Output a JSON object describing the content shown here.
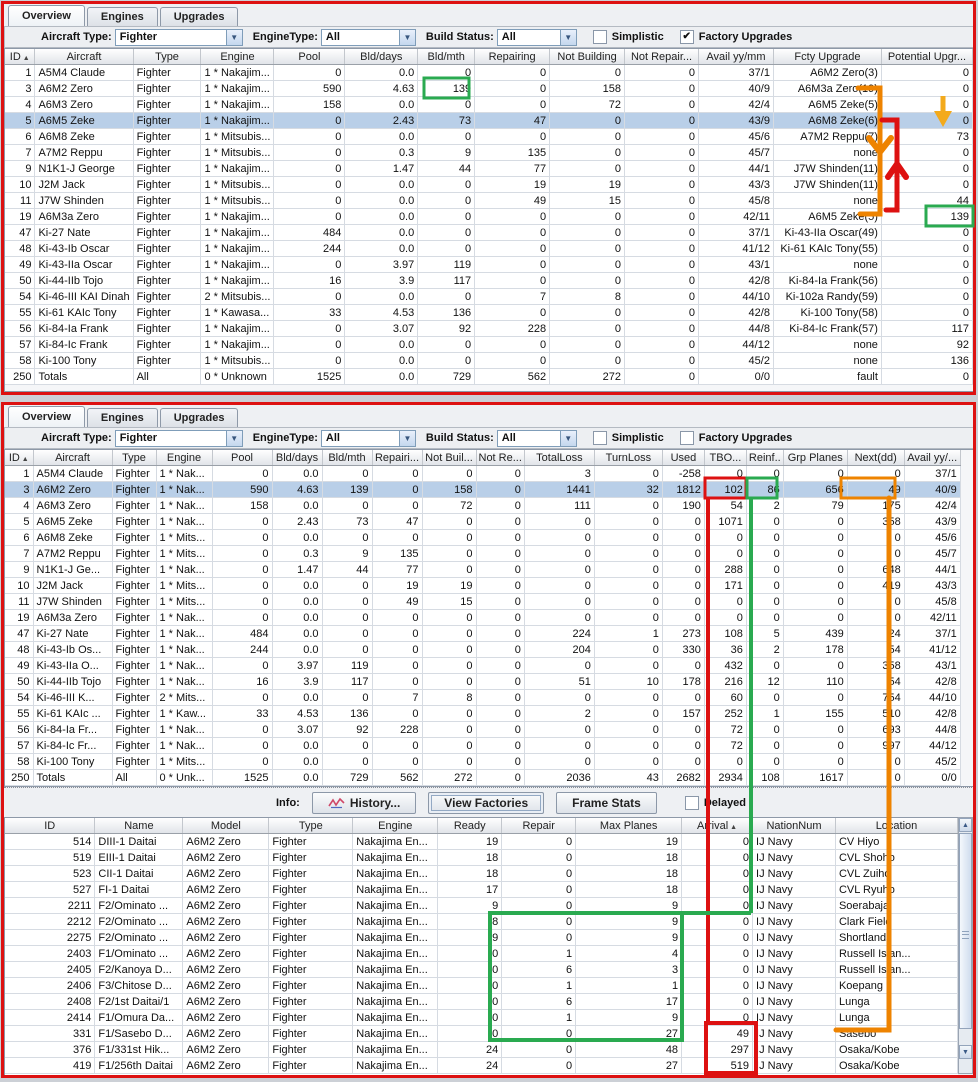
{
  "ui": {
    "sort_asc": "▲",
    "combo_arrow": "▼",
    "check_glyph": "✔",
    "scroll_up": "▲",
    "scroll_down": "▼"
  },
  "colors": {
    "annotation_red": "#dd1111",
    "annotation_green": "#2aaa50",
    "annotation_orange": "#ee8300",
    "annotation_amber": "#f3aa1c",
    "selection_blue": "#b9cfe8"
  },
  "panel_top": {
    "tabs": [
      {
        "label": "Overview"
      },
      {
        "label": "Engines"
      },
      {
        "label": "Upgrades"
      }
    ],
    "filters": {
      "aircraft_type_label": "Aircraft Type:",
      "aircraft_type_value": "Fighter",
      "engine_type_label": "EngineType:",
      "engine_type_value": "All",
      "build_status_label": "Build Status:",
      "build_status_value": "All",
      "simplistic_label": "Simplistic",
      "simplistic_checked": false,
      "factory_upgrades_label": "Factory Upgrades",
      "factory_upgrades_checked": true
    },
    "table": {
      "columns": [
        "ID",
        "Aircraft",
        "Type",
        "Engine",
        "Pool",
        "Bld/days",
        "Bld/mth",
        "Repairing",
        "Not Building",
        "Not Repair...",
        "Avail yy/mm",
        "Fcty Upgrade",
        "Potential Upgr..."
      ],
      "sort_column_index": 0,
      "selected_row_index": 3,
      "rows": [
        [
          "1",
          "A5M4 Claude",
          "Fighter",
          "1 * Nakajim...",
          "0",
          "0.0",
          "0",
          "0",
          "0",
          "0",
          "37/1",
          "A6M2 Zero(3)",
          "0"
        ],
        [
          "3",
          "A6M2 Zero",
          "Fighter",
          "1 * Nakajim...",
          "590",
          "4.63",
          "139",
          "0",
          "158",
          "0",
          "40/9",
          "A6M3a Zero(19)",
          "0"
        ],
        [
          "4",
          "A6M3 Zero",
          "Fighter",
          "1 * Nakajim...",
          "158",
          "0.0",
          "0",
          "0",
          "72",
          "0",
          "42/4",
          "A6M5 Zeke(5)",
          "0"
        ],
        [
          "5",
          "A6M5 Zeke",
          "Fighter",
          "1 * Nakajim...",
          "0",
          "2.43",
          "73",
          "47",
          "0",
          "0",
          "43/9",
          "A6M8 Zeke(6)",
          "0"
        ],
        [
          "6",
          "A6M8 Zeke",
          "Fighter",
          "1 * Mitsubis...",
          "0",
          "0.0",
          "0",
          "0",
          "0",
          "0",
          "45/6",
          "A7M2 Reppu(7)",
          "73"
        ],
        [
          "7",
          "A7M2 Reppu",
          "Fighter",
          "1 * Mitsubis...",
          "0",
          "0.3",
          "9",
          "135",
          "0",
          "0",
          "45/7",
          "none",
          "0"
        ],
        [
          "9",
          "N1K1-J George",
          "Fighter",
          "1 * Nakajim...",
          "0",
          "1.47",
          "44",
          "77",
          "0",
          "0",
          "44/1",
          "J7W Shinden(11)",
          "0"
        ],
        [
          "10",
          "J2M Jack",
          "Fighter",
          "1 * Mitsubis...",
          "0",
          "0.0",
          "0",
          "19",
          "19",
          "0",
          "43/3",
          "J7W Shinden(11)",
          "0"
        ],
        [
          "11",
          "J7W Shinden",
          "Fighter",
          "1 * Mitsubis...",
          "0",
          "0.0",
          "0",
          "49",
          "15",
          "0",
          "45/8",
          "none",
          "44"
        ],
        [
          "19",
          "A6M3a Zero",
          "Fighter",
          "1 * Nakajim...",
          "0",
          "0.0",
          "0",
          "0",
          "0",
          "0",
          "42/11",
          "A6M5 Zeke(5)",
          "139"
        ],
        [
          "47",
          "Ki-27 Nate",
          "Fighter",
          "1 * Nakajim...",
          "484",
          "0.0",
          "0",
          "0",
          "0",
          "0",
          "37/1",
          "Ki-43-IIa Oscar(49)",
          "0"
        ],
        [
          "48",
          "Ki-43-Ib Oscar",
          "Fighter",
          "1 * Nakajim...",
          "244",
          "0.0",
          "0",
          "0",
          "0",
          "0",
          "41/12",
          "Ki-61 KAIc Tony(55)",
          "0"
        ],
        [
          "49",
          "Ki-43-IIa Oscar",
          "Fighter",
          "1 * Nakajim...",
          "0",
          "3.97",
          "119",
          "0",
          "0",
          "0",
          "43/1",
          "none",
          "0"
        ],
        [
          "50",
          "Ki-44-IIb Tojo",
          "Fighter",
          "1 * Nakajim...",
          "16",
          "3.9",
          "117",
          "0",
          "0",
          "0",
          "42/8",
          "Ki-84-Ia Frank(56)",
          "0"
        ],
        [
          "54",
          "Ki-46-III KAI Dinah",
          "Fighter",
          "2 * Mitsubis...",
          "0",
          "0.0",
          "0",
          "7",
          "8",
          "0",
          "44/10",
          "Ki-102a Randy(59)",
          "0"
        ],
        [
          "55",
          "Ki-61 KAIc Tony",
          "Fighter",
          "1 * Kawasa...",
          "33",
          "4.53",
          "136",
          "0",
          "0",
          "0",
          "42/8",
          "Ki-100 Tony(58)",
          "0"
        ],
        [
          "56",
          "Ki-84-Ia Frank",
          "Fighter",
          "1 * Nakajim...",
          "0",
          "3.07",
          "92",
          "228",
          "0",
          "0",
          "44/8",
          "Ki-84-Ic Frank(57)",
          "117"
        ],
        [
          "57",
          "Ki-84-Ic Frank",
          "Fighter",
          "1 * Nakajim...",
          "0",
          "0.0",
          "0",
          "0",
          "0",
          "0",
          "44/12",
          "none",
          "92"
        ],
        [
          "58",
          "Ki-100 Tony",
          "Fighter",
          "1 * Mitsubis...",
          "0",
          "0.0",
          "0",
          "0",
          "0",
          "0",
          "45/2",
          "none",
          "136"
        ],
        [
          "250",
          "Totals",
          "All",
          "0 * Unknown",
          "1525",
          "0.0",
          "729",
          "562",
          "272",
          "0",
          "0/0",
          "fault",
          "0"
        ]
      ]
    }
  },
  "panel_bottom": {
    "tabs": [
      {
        "label": "Overview"
      },
      {
        "label": "Engines"
      },
      {
        "label": "Upgrades"
      }
    ],
    "filters": {
      "aircraft_type_label": "Aircraft Type:",
      "aircraft_type_value": "Fighter",
      "engine_type_label": "EngineType:",
      "engine_type_value": "All",
      "build_status_label": "Build Status:",
      "build_status_value": "All",
      "simplistic_label": "Simplistic",
      "simplistic_checked": false,
      "factory_upgrades_label": "Factory Upgrades",
      "factory_upgrades_checked": false
    },
    "table": {
      "columns": [
        "ID",
        "Aircraft",
        "Type",
        "Engine",
        "Pool",
        "Bld/days",
        "Bld/mth",
        "Repairi...",
        "Not Buil...",
        "Not Re...",
        "TotalLoss",
        "TurnLoss",
        "Used",
        "TBO...",
        "Reinf..",
        "Grp Planes",
        "Next(dd)",
        "Avail yy/..."
      ],
      "sort_column_index": 0,
      "selected_row_index": 1,
      "rows": [
        [
          "1",
          "A5M4 Claude",
          "Fighter",
          "1 * Nak...",
          "0",
          "0.0",
          "0",
          "0",
          "0",
          "0",
          "3",
          "0",
          "-258",
          "0",
          "0",
          "0",
          "0",
          "37/1"
        ],
        [
          "3",
          "A6M2 Zero",
          "Fighter",
          "1 * Nak...",
          "590",
          "4.63",
          "139",
          "0",
          "158",
          "0",
          "1441",
          "32",
          "1812",
          "102",
          "86",
          "656",
          "49",
          "40/9"
        ],
        [
          "4",
          "A6M3 Zero",
          "Fighter",
          "1 * Nak...",
          "158",
          "0.0",
          "0",
          "0",
          "72",
          "0",
          "111",
          "0",
          "190",
          "54",
          "2",
          "79",
          "175",
          "42/4"
        ],
        [
          "5",
          "A6M5 Zeke",
          "Fighter",
          "1 * Nak...",
          "0",
          "2.43",
          "73",
          "47",
          "0",
          "0",
          "0",
          "0",
          "0",
          "1071",
          "0",
          "0",
          "358",
          "43/9"
        ],
        [
          "6",
          "A6M8 Zeke",
          "Fighter",
          "1 * Mits...",
          "0",
          "0.0",
          "0",
          "0",
          "0",
          "0",
          "0",
          "0",
          "0",
          "0",
          "0",
          "0",
          "0",
          "45/6"
        ],
        [
          "7",
          "A7M2 Reppu",
          "Fighter",
          "1 * Mits...",
          "0",
          "0.3",
          "9",
          "135",
          "0",
          "0",
          "0",
          "0",
          "0",
          "0",
          "0",
          "0",
          "0",
          "45/7"
        ],
        [
          "9",
          "N1K1-J Ge...",
          "Fighter",
          "1 * Nak...",
          "0",
          "1.47",
          "44",
          "77",
          "0",
          "0",
          "0",
          "0",
          "0",
          "288",
          "0",
          "0",
          "648",
          "44/1"
        ],
        [
          "10",
          "J2M Jack",
          "Fighter",
          "1 * Mits...",
          "0",
          "0.0",
          "0",
          "19",
          "19",
          "0",
          "0",
          "0",
          "0",
          "171",
          "0",
          "0",
          "419",
          "43/3"
        ],
        [
          "11",
          "J7W Shinden",
          "Fighter",
          "1 * Mits...",
          "0",
          "0.0",
          "0",
          "49",
          "15",
          "0",
          "0",
          "0",
          "0",
          "0",
          "0",
          "0",
          "0",
          "45/8"
        ],
        [
          "19",
          "A6M3a Zero",
          "Fighter",
          "1 * Nak...",
          "0",
          "0.0",
          "0",
          "0",
          "0",
          "0",
          "0",
          "0",
          "0",
          "0",
          "0",
          "0",
          "0",
          "42/11"
        ],
        [
          "47",
          "Ki-27 Nate",
          "Fighter",
          "1 * Nak...",
          "484",
          "0.0",
          "0",
          "0",
          "0",
          "0",
          "224",
          "1",
          "273",
          "108",
          "5",
          "439",
          "24",
          "37/1"
        ],
        [
          "48",
          "Ki-43-Ib Os...",
          "Fighter",
          "1 * Nak...",
          "244",
          "0.0",
          "0",
          "0",
          "0",
          "0",
          "204",
          "0",
          "330",
          "36",
          "2",
          "178",
          "54",
          "41/12"
        ],
        [
          "49",
          "Ki-43-IIa O...",
          "Fighter",
          "1 * Nak...",
          "0",
          "3.97",
          "119",
          "0",
          "0",
          "0",
          "0",
          "0",
          "0",
          "432",
          "0",
          "0",
          "358",
          "43/1"
        ],
        [
          "50",
          "Ki-44-IIb Tojo",
          "Fighter",
          "1 * Nak...",
          "16",
          "3.9",
          "117",
          "0",
          "0",
          "0",
          "51",
          "10",
          "178",
          "216",
          "12",
          "110",
          "54",
          "42/8"
        ],
        [
          "54",
          "Ki-46-III K...",
          "Fighter",
          "2 * Mits...",
          "0",
          "0.0",
          "0",
          "7",
          "8",
          "0",
          "0",
          "0",
          "0",
          "60",
          "0",
          "0",
          "754",
          "44/10"
        ],
        [
          "55",
          "Ki-61 KAIc ...",
          "Fighter",
          "1 * Kaw...",
          "33",
          "4.53",
          "136",
          "0",
          "0",
          "0",
          "2",
          "0",
          "157",
          "252",
          "1",
          "155",
          "510",
          "42/8"
        ],
        [
          "56",
          "Ki-84-Ia Fr...",
          "Fighter",
          "1 * Nak...",
          "0",
          "3.07",
          "92",
          "228",
          "0",
          "0",
          "0",
          "0",
          "0",
          "72",
          "0",
          "0",
          "693",
          "44/8"
        ],
        [
          "57",
          "Ki-84-Ic Fr...",
          "Fighter",
          "1 * Nak...",
          "0",
          "0.0",
          "0",
          "0",
          "0",
          "0",
          "0",
          "0",
          "0",
          "72",
          "0",
          "0",
          "997",
          "44/12"
        ],
        [
          "58",
          "Ki-100 Tony",
          "Fighter",
          "1 * Mits...",
          "0",
          "0.0",
          "0",
          "0",
          "0",
          "0",
          "0",
          "0",
          "0",
          "0",
          "0",
          "0",
          "0",
          "45/2"
        ],
        [
          "250",
          "Totals",
          "All",
          "0 * Unk...",
          "1525",
          "0.0",
          "729",
          "562",
          "272",
          "0",
          "2036",
          "43",
          "2682",
          "2934",
          "108",
          "1617",
          "0",
          "0/0"
        ]
      ]
    }
  },
  "info_bar": {
    "label": "Info:",
    "history_button": "History...",
    "view_factories_button": "View Factories",
    "frame_stats_button": "Frame Stats",
    "delayed_label": "Delayed",
    "delayed_checked": false
  },
  "groups_table": {
    "columns": [
      "ID",
      "Name",
      "Model",
      "Type",
      "Engine",
      "Ready",
      "Repair",
      "Max Planes",
      "Arrival",
      "NationNum",
      "Location"
    ],
    "sort_column_index": 8,
    "selected_row_index": -1,
    "rows": [
      [
        "514",
        "DIII-1 Daitai",
        "A6M2 Zero",
        "Fighter",
        "Nakajima En...",
        "19",
        "0",
        "19",
        "0",
        "IJ Navy",
        "CV Hiyo"
      ],
      [
        "519",
        "EIII-1 Daitai",
        "A6M2 Zero",
        "Fighter",
        "Nakajima En...",
        "18",
        "0",
        "18",
        "0",
        "IJ Navy",
        "CVL Shoho"
      ],
      [
        "523",
        "CII-1 Daitai",
        "A6M2 Zero",
        "Fighter",
        "Nakajima En...",
        "18",
        "0",
        "18",
        "0",
        "IJ Navy",
        "CVL Zuiho"
      ],
      [
        "527",
        "FI-1 Daitai",
        "A6M2 Zero",
        "Fighter",
        "Nakajima En...",
        "17",
        "0",
        "18",
        "0",
        "IJ Navy",
        "CVL Ryuho"
      ],
      [
        "2211",
        "F2/Ominato ...",
        "A6M2 Zero",
        "Fighter",
        "Nakajima En...",
        "9",
        "0",
        "9",
        "0",
        "IJ Navy",
        "Soerabaja"
      ],
      [
        "2212",
        "F2/Ominato ...",
        "A6M2 Zero",
        "Fighter",
        "Nakajima En...",
        "8",
        "0",
        "9",
        "0",
        "IJ Navy",
        "Clark Field"
      ],
      [
        "2275",
        "F2/Ominato ...",
        "A6M2 Zero",
        "Fighter",
        "Nakajima En...",
        "9",
        "0",
        "9",
        "0",
        "IJ Navy",
        "Shortlands"
      ],
      [
        "2403",
        "F1/Ominato ...",
        "A6M2 Zero",
        "Fighter",
        "Nakajima En...",
        "0",
        "1",
        "4",
        "0",
        "IJ Navy",
        "Russell Islan..."
      ],
      [
        "2405",
        "F2/Kanoya D...",
        "A6M2 Zero",
        "Fighter",
        "Nakajima En...",
        "0",
        "6",
        "3",
        "0",
        "IJ Navy",
        "Russell Islan..."
      ],
      [
        "2406",
        "F3/Chitose D...",
        "A6M2 Zero",
        "Fighter",
        "Nakajima En...",
        "0",
        "1",
        "1",
        "0",
        "IJ Navy",
        "Koepang"
      ],
      [
        "2408",
        "F2/1st Daitai/1",
        "A6M2 Zero",
        "Fighter",
        "Nakajima En...",
        "0",
        "6",
        "17",
        "0",
        "IJ Navy",
        "Lunga"
      ],
      [
        "2414",
        "F1/Omura Da...",
        "A6M2 Zero",
        "Fighter",
        "Nakajima En...",
        "0",
        "1",
        "9",
        "0",
        "IJ Navy",
        "Lunga"
      ],
      [
        "331",
        "F1/Sasebo D...",
        "A6M2 Zero",
        "Fighter",
        "Nakajima En...",
        "0",
        "0",
        "27",
        "49",
        "IJ Navy",
        "Sasebo"
      ],
      [
        "376",
        "F1/331st Hik...",
        "A6M2 Zero",
        "Fighter",
        "Nakajima En...",
        "24",
        "0",
        "48",
        "297",
        "IJ Navy",
        "Osaka/Kobe"
      ],
      [
        "419",
        "F1/256th Daitai",
        "A6M2 Zero",
        "Fighter",
        "Nakajima En...",
        "24",
        "0",
        "27",
        "519",
        "IJ Navy",
        "Osaka/Kobe"
      ]
    ]
  }
}
